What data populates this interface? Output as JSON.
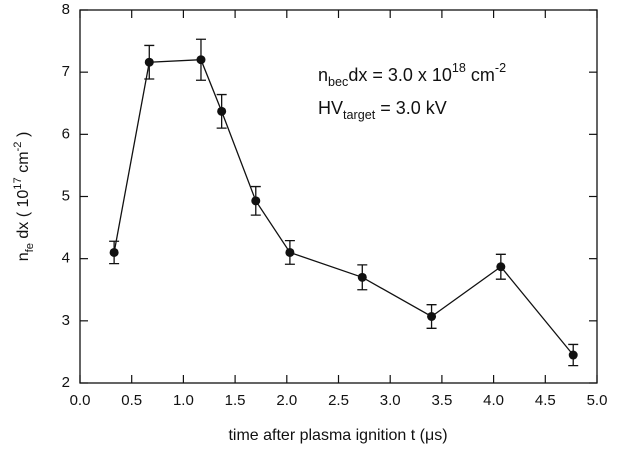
{
  "chart_data": {
    "type": "line",
    "x_label": "time after plasma ignition t (μs)",
    "y_label_parts": [
      {
        "text": "n"
      },
      {
        "text": "fe",
        "shift": "sub"
      },
      {
        "text": " dx ( 10"
      },
      {
        "text": "17",
        "shift": "sup"
      },
      {
        "text": " cm"
      },
      {
        "text": "-2",
        "shift": "sup"
      },
      {
        "text": " )"
      }
    ],
    "annotations": [
      {
        "parts": [
          {
            "text": "n"
          },
          {
            "text": "bec",
            "shift": "sub"
          },
          {
            "text": "dx   = 3.0 x 10"
          },
          {
            "text": "18",
            "shift": "sup"
          },
          {
            "text": " cm"
          },
          {
            "text": "-2",
            "shift": "sup"
          }
        ]
      },
      {
        "parts": [
          {
            "text": "HV"
          },
          {
            "text": "target",
            "shift": "sub"
          },
          {
            "text": " = 3.0 kV"
          }
        ]
      }
    ],
    "x": [
      0.33,
      0.67,
      1.17,
      1.37,
      1.7,
      2.03,
      2.73,
      3.4,
      4.07,
      4.77
    ],
    "values": [
      4.1,
      7.16,
      7.2,
      6.37,
      4.93,
      4.1,
      3.7,
      3.07,
      3.87,
      2.45
    ],
    "errors": [
      0.18,
      0.27,
      0.33,
      0.27,
      0.23,
      0.19,
      0.2,
      0.19,
      0.2,
      0.17
    ],
    "color": "#111111",
    "xlim": [
      0,
      5
    ],
    "ylim": [
      2,
      8
    ],
    "xticks": [
      {
        "value": 0,
        "label": "0.0"
      },
      0.5,
      {
        "value": 1,
        "label": "1.0"
      },
      1.5,
      {
        "value": 2,
        "label": "2.0"
      },
      2.5,
      {
        "value": 3,
        "label": "3.0"
      },
      3.5,
      {
        "value": 4,
        "label": "4.0"
      },
      4.5,
      {
        "value": 5,
        "label": "5.0"
      }
    ],
    "yticks": [
      2,
      3,
      4,
      5,
      6,
      7,
      8
    ]
  }
}
